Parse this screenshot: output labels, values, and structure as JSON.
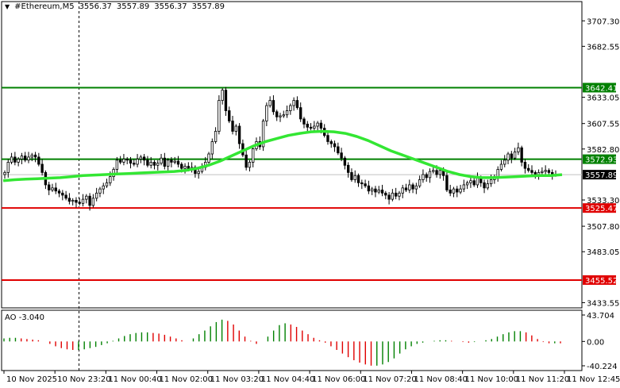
{
  "header": {
    "symbol_label": "#Ethereum,M5",
    "open": "3556.37",
    "high": "3557.89",
    "low": "3556.37",
    "close": "3557.89"
  },
  "indicator": {
    "label": "AO -3.040"
  },
  "colors": {
    "background": "#ffffff",
    "candle": "#000000",
    "ma_line": "#33e633",
    "resistance_line": "#008000",
    "support_line": "#e00000",
    "ao_up": "#008000",
    "ao_down": "#e00000",
    "crosshair": "#000000",
    "current_price_line": "#c0c0c0"
  },
  "chart_data": [
    {
      "type": "candlestick",
      "title": "#Ethereum,M5",
      "y_ticks": [
        "3707.30",
        "3682.55",
        "3633.05",
        "3607.55",
        "3582.80",
        "3533.30",
        "3507.80",
        "3483.05",
        "3433.55"
      ],
      "y_tick_values": [
        3707.3,
        3682.55,
        3633.05,
        3607.55,
        3582.8,
        3533.3,
        3507.8,
        3483.05,
        3433.55
      ],
      "ylim": [
        3428.5,
        3726
      ],
      "x_ticks": [
        "10 Nov 2025",
        "10 Nov 23:20",
        "11 Nov 00:40",
        "11 Nov 02:00",
        "11 Nov 03:20",
        "11 Nov 04:40",
        "11 Nov 06:00",
        "11 Nov 07:20",
        "11 Nov 08:40",
        "11 Nov 10:00",
        "11 Nov 11:20",
        "11 Nov 12:45"
      ],
      "grid": false,
      "current_price": "3557.89",
      "horizontal_levels": [
        {
          "label": "3642.41",
          "value": 3642.41,
          "role": "resistance"
        },
        {
          "label": "3572.93",
          "value": 3572.93,
          "role": "resistance"
        },
        {
          "label": "3525.47",
          "value": 3525.47,
          "role": "support"
        },
        {
          "label": "3455.52",
          "value": 3455.52,
          "role": "support"
        }
      ],
      "candles_close": [
        3560,
        3570,
        3575,
        3570,
        3573,
        3576,
        3572,
        3575,
        3577,
        3575,
        3568,
        3560,
        3548,
        3543,
        3545,
        3542,
        3540,
        3538,
        3535,
        3532,
        3533,
        3531,
        3530,
        3534,
        3537,
        3528,
        3535,
        3540,
        3544,
        3547,
        3550,
        3556,
        3563,
        3572,
        3570,
        3573,
        3572,
        3569,
        3568,
        3573,
        3575,
        3572,
        3567,
        3570,
        3567,
        3569,
        3574,
        3566,
        3572,
        3570,
        3571,
        3568,
        3564,
        3566,
        3563,
        3565,
        3559,
        3561,
        3565,
        3570,
        3578,
        3590,
        3600,
        3630,
        3640,
        3620,
        3610,
        3600,
        3605,
        3588,
        3577,
        3565,
        3570,
        3583,
        3590,
        3585,
        3610,
        3625,
        3630,
        3619,
        3614,
        3615,
        3616,
        3620,
        3625,
        3630,
        3623,
        3612,
        3607,
        3604,
        3603,
        3605,
        3608,
        3603,
        3596,
        3590,
        3588,
        3585,
        3579,
        3574,
        3567,
        3560,
        3553,
        3557,
        3550,
        3549,
        3547,
        3542,
        3544,
        3541,
        3543,
        3540,
        3538,
        3534,
        3540,
        3537,
        3540,
        3545,
        3543,
        3548,
        3544,
        3547,
        3553,
        3558,
        3555,
        3561,
        3562,
        3558,
        3562,
        3557,
        3543,
        3540,
        3544,
        3541,
        3544,
        3548,
        3550,
        3552,
        3548,
        3555,
        3550,
        3545,
        3549,
        3553,
        3556,
        3563,
        3568,
        3572,
        3578,
        3574,
        3580,
        3584,
        3570,
        3564,
        3562,
        3560,
        3558,
        3560,
        3561,
        3562,
        3560,
        3558,
        3557.89
      ],
      "series": [
        {
          "name": "",
          "type": "moving-average",
          "values": [
            3552,
            3553,
            3553.5,
            3554,
            3554.5,
            3555,
            3556,
            3557,
            3557.5,
            3558,
            3558.5,
            3559,
            3559.5,
            3560,
            3560.5,
            3561,
            3562,
            3564,
            3567,
            3571,
            3576,
            3581,
            3586,
            3590,
            3593,
            3596,
            3598,
            3599.5,
            3600,
            3599.5,
            3598,
            3595,
            3591,
            3586,
            3581,
            3577,
            3573,
            3569,
            3565,
            3561,
            3558,
            3556,
            3555,
            3555,
            3555.5,
            3556,
            3556.5,
            3557,
            3557,
            3557.89
          ]
        },
        {
          "name": "",
          "type": "awesome-oscillator",
          "values": [
            5,
            6,
            6,
            5,
            4,
            3,
            2,
            0,
            -4,
            -8,
            -11,
            -13,
            -14,
            -14,
            -13,
            -11,
            -9,
            -6,
            -3,
            1,
            5,
            9,
            12,
            14,
            15,
            15,
            14,
            13,
            11,
            8,
            5,
            2,
            0,
            5,
            12,
            18,
            25,
            32,
            36,
            34,
            28,
            18,
            8,
            1,
            -4,
            0,
            8,
            18,
            27,
            30,
            28,
            24,
            18,
            12,
            6,
            2,
            -2,
            -8,
            -14,
            -20,
            -26,
            -31,
            -35,
            -38,
            -40,
            -40,
            -38,
            -34,
            -28,
            -20,
            -13,
            -8,
            -4,
            -2,
            0,
            1,
            2,
            2,
            1,
            0,
            -1,
            -2,
            -1,
            0,
            2,
            4,
            8,
            12,
            15,
            17,
            17,
            15,
            10,
            4,
            -1,
            -3,
            -3,
            -3.04
          ]
        }
      ],
      "ao_ticks": [
        "43.704",
        "0.00",
        "-40.224"
      ],
      "ao_tick_values": [
        43.704,
        0.0,
        -40.224
      ]
    }
  ]
}
